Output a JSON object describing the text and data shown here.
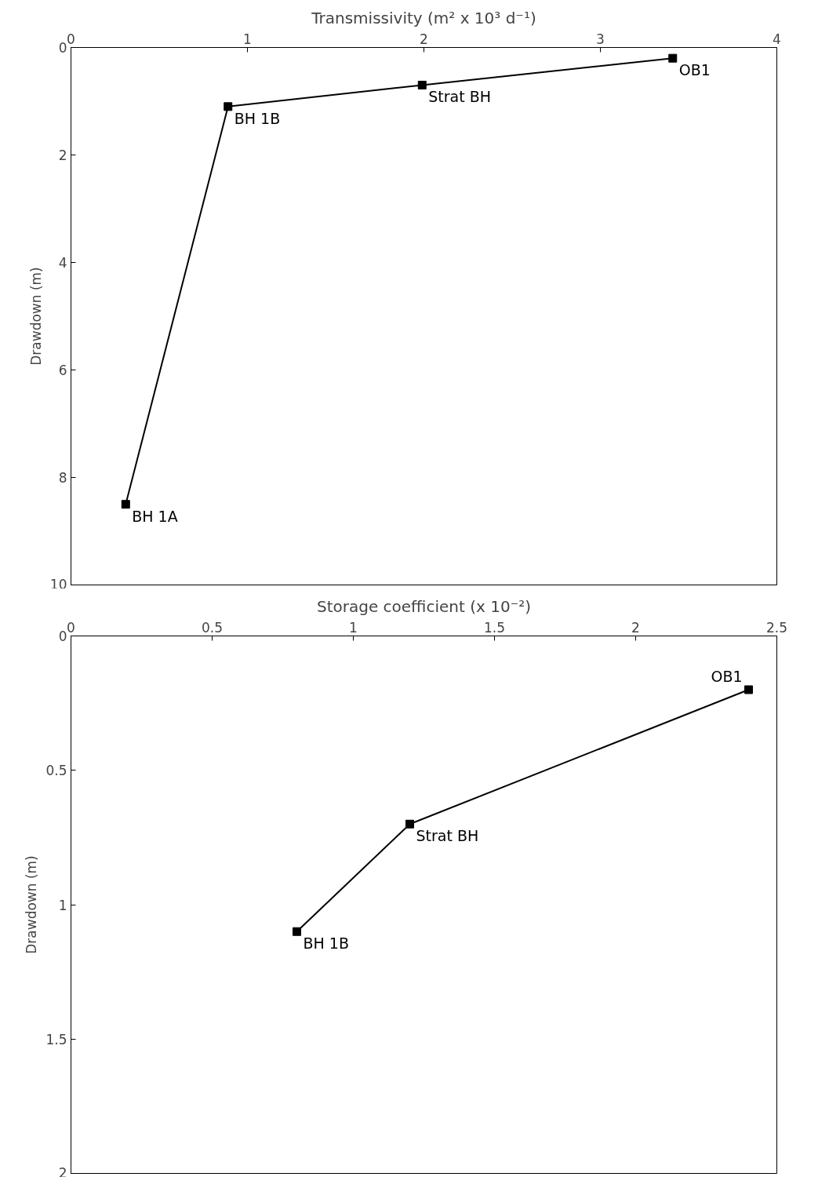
{
  "chart_data": [
    {
      "type": "line",
      "xlabel": "Transmissivity (m² x 10³ d⁻¹)",
      "ylabel": "Drawdown (m)",
      "x": [
        0.31,
        0.89,
        1.99,
        3.41
      ],
      "series": [
        {
          "color": "#000000",
          "values": [
            8.5,
            1.1,
            0.7,
            0.2
          ]
        }
      ],
      "xlim": [
        0,
        4
      ],
      "xticks": [
        0,
        1,
        2,
        3,
        4
      ],
      "ylim": [
        10,
        0
      ],
      "yticks": [
        0,
        2,
        4,
        6,
        8,
        10
      ],
      "marker": "square",
      "line_style": "solid",
      "grid": false,
      "annotations": [
        {
          "text": "BH 1A",
          "x": 0.31,
          "y": 8.5
        },
        {
          "text": "BH 1B",
          "x": 0.89,
          "y": 1.1
        },
        {
          "text": "Strat BH",
          "x": 1.99,
          "y": 0.7
        },
        {
          "text": "OB1",
          "x": 3.41,
          "y": 0.2
        }
      ]
    },
    {
      "type": "line",
      "xlabel": "Storage coefficient (x 10⁻²)",
      "ylabel": "Drawdown (m)",
      "x": [
        0.8,
        1.2,
        2.4
      ],
      "series": [
        {
          "color": "#000000",
          "values": [
            1.1,
            0.7,
            0.2
          ]
        }
      ],
      "xlim": [
        0,
        2.5
      ],
      "xticks": [
        0,
        0.5,
        1,
        1.5,
        2,
        2.5
      ],
      "ylim": [
        2,
        0
      ],
      "yticks": [
        0,
        0.5,
        1,
        1.5,
        2
      ],
      "marker": "square",
      "line_style": "solid",
      "grid": false,
      "annotations": [
        {
          "text": "BH 1B",
          "x": 0.8,
          "y": 1.1
        },
        {
          "text": "Strat BH",
          "x": 1.2,
          "y": 0.7
        },
        {
          "text": "OB1",
          "x": 2.4,
          "y": 0.2
        }
      ]
    }
  ]
}
